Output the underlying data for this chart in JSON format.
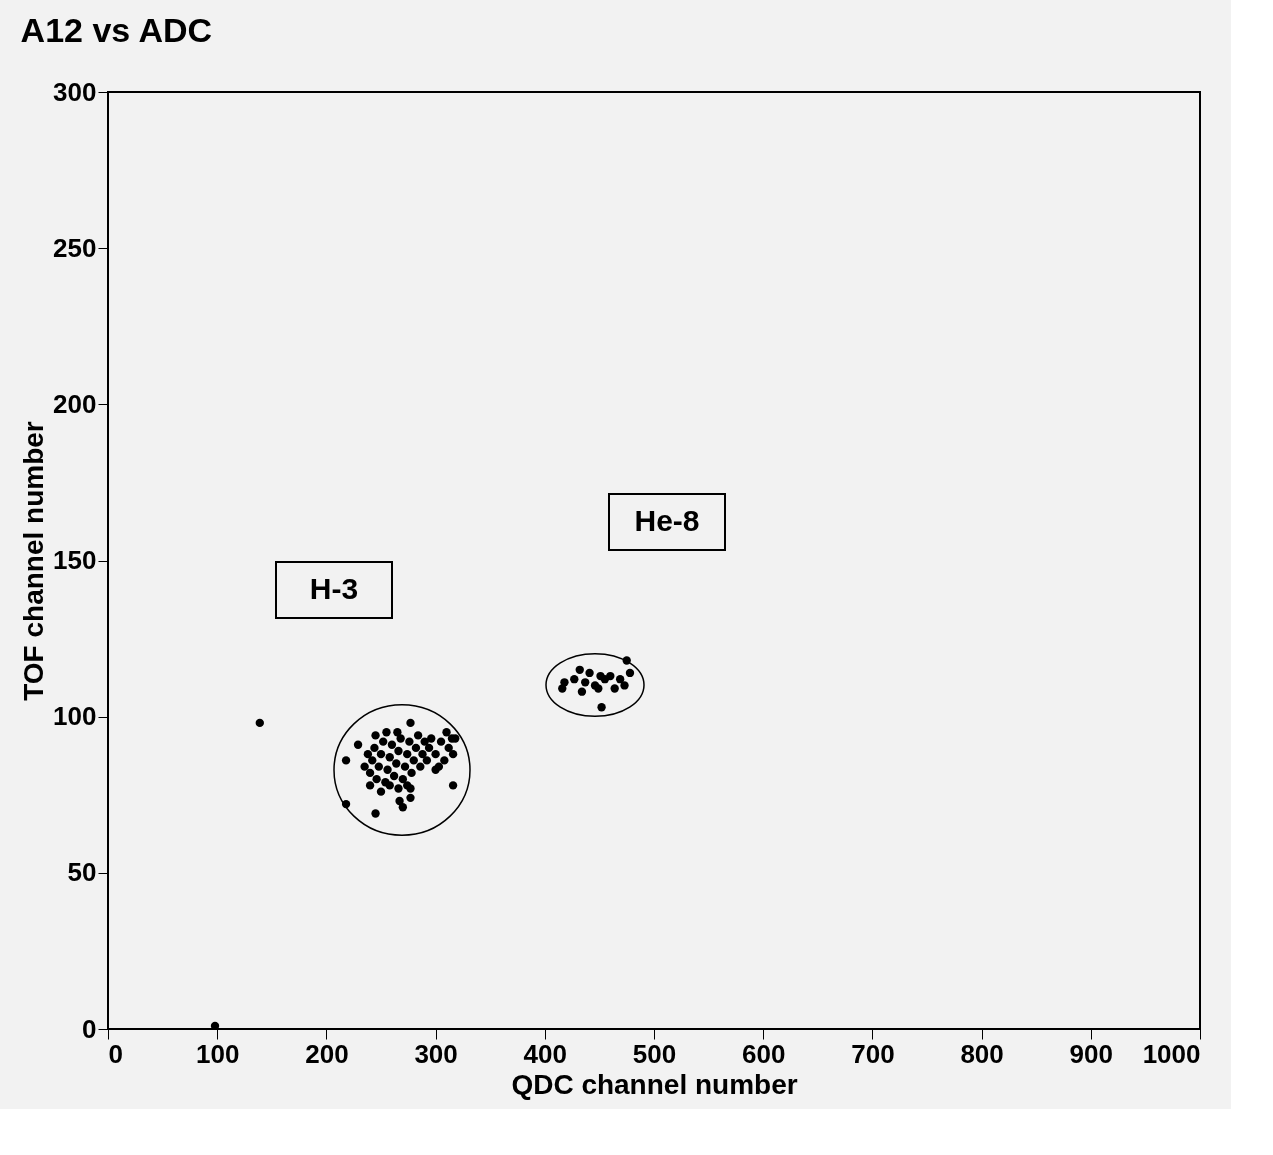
{
  "chart_data": {
    "type": "scatter",
    "title": "A12 vs ADC",
    "xlabel": "QDC channel number",
    "ylabel": "TOF channel number",
    "xlim": [
      0,
      1000
    ],
    "xticks": [
      0,
      100,
      200,
      300,
      400,
      500,
      600,
      700,
      800,
      900,
      {
        "value": 1000,
        "label": "1000"
      }
    ],
    "ylim": [
      0,
      300
    ],
    "yticks": [
      0,
      50,
      100,
      150,
      200,
      250,
      300
    ],
    "grid": false,
    "marker": "circle",
    "series": [
      {
        "color": "#000000",
        "x": [
          139,
          98,
          218,
          218,
          245,
          267,
          277,
          270,
          277,
          316,
          315,
          300,
          277,
          229,
          235,
          238,
          240,
          242,
          244,
          246,
          248,
          250,
          252,
          254,
          256,
          258,
          260,
          262,
          264,
          266,
          268,
          270,
          272,
          274,
          276,
          278,
          280,
          282,
          284,
          286,
          288,
          290,
          292,
          294,
          296,
          250,
          258,
          266,
          274,
          245,
          255,
          265,
          300,
          305,
          310,
          312,
          308,
          303,
          240,
          318,
          316,
          418,
          416,
          432,
          441,
          451,
          460,
          434,
          452,
          449,
          464,
          475,
          478,
          473,
          427,
          437,
          446,
          455,
          469
        ],
        "values": [
          98,
          1,
          86,
          72,
          69,
          73,
          74,
          71,
          77,
          78,
          93,
          83,
          98,
          91,
          84,
          88,
          82,
          86,
          90,
          80,
          84,
          88,
          92,
          79,
          83,
          87,
          91,
          81,
          85,
          89,
          93,
          80,
          84,
          88,
          92,
          82,
          86,
          90,
          94,
          84,
          88,
          92,
          86,
          90,
          93,
          76,
          78,
          77,
          78,
          94,
          95,
          95,
          88,
          92,
          95,
          90,
          86,
          84,
          78,
          93,
          88,
          111,
          109,
          115,
          114,
          113,
          113,
          108,
          103,
          109,
          109,
          118,
          114,
          110,
          112,
          111,
          110,
          112,
          112
        ]
      }
    ],
    "annotations": [
      "H-3",
      "He-8"
    ]
  }
}
